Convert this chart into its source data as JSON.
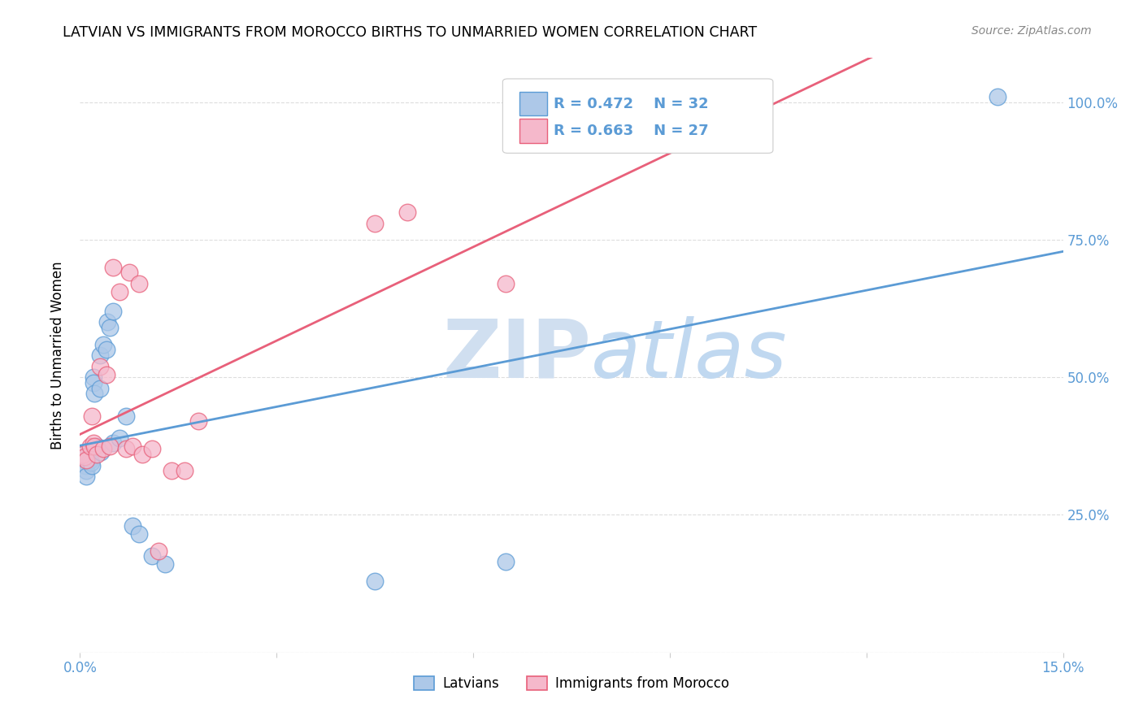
{
  "title": "LATVIAN VS IMMIGRANTS FROM MOROCCO BIRTHS TO UNMARRIED WOMEN CORRELATION CHART",
  "source": "Source: ZipAtlas.com",
  "ylabel": "Births to Unmarried Women",
  "x_min": 0.0,
  "x_max": 0.15,
  "y_min": 0.0,
  "y_max": 1.08,
  "x_ticks": [
    0.0,
    0.03,
    0.06,
    0.09,
    0.12,
    0.15
  ],
  "y_ticks": [
    0.0,
    0.25,
    0.5,
    0.75,
    1.0
  ],
  "latvians_color": "#adc8e8",
  "morocco_color": "#f5b8cb",
  "latvians_line_color": "#5b9bd5",
  "morocco_line_color": "#e8607a",
  "legend_latvians": "Latvians",
  "legend_morocco": "Immigrants from Morocco",
  "R_latvians": "R = 0.472",
  "N_latvians": "N = 32",
  "R_morocco": "R = 0.663",
  "N_morocco": "N = 27",
  "watermark_zip": "ZIP",
  "watermark_atlas": "atlas",
  "background_color": "#ffffff",
  "grid_color": "#dddddd",
  "latvians_x": [
    0.0005,
    0.0007,
    0.0008,
    0.0009,
    0.001,
    0.0012,
    0.0013,
    0.0015,
    0.0017,
    0.0018,
    0.002,
    0.002,
    0.0022,
    0.0025,
    0.003,
    0.003,
    0.0032,
    0.0035,
    0.004,
    0.0042,
    0.0045,
    0.005,
    0.005,
    0.006,
    0.007,
    0.008,
    0.009,
    0.011,
    0.013,
    0.045,
    0.065,
    0.14
  ],
  "latvians_y": [
    0.36,
    0.35,
    0.34,
    0.33,
    0.32,
    0.36,
    0.355,
    0.35,
    0.345,
    0.34,
    0.5,
    0.49,
    0.47,
    0.375,
    0.54,
    0.48,
    0.365,
    0.56,
    0.55,
    0.6,
    0.59,
    0.62,
    0.38,
    0.39,
    0.43,
    0.23,
    0.215,
    0.175,
    0.16,
    0.13,
    0.165,
    1.01
  ],
  "morocco_x": [
    0.0005,
    0.0007,
    0.001,
    0.0015,
    0.0018,
    0.002,
    0.0022,
    0.0025,
    0.003,
    0.0035,
    0.004,
    0.0045,
    0.005,
    0.006,
    0.007,
    0.0075,
    0.008,
    0.009,
    0.0095,
    0.011,
    0.012,
    0.014,
    0.016,
    0.018,
    0.045,
    0.05,
    0.065
  ],
  "morocco_y": [
    0.36,
    0.355,
    0.35,
    0.375,
    0.43,
    0.38,
    0.375,
    0.36,
    0.52,
    0.37,
    0.505,
    0.375,
    0.7,
    0.655,
    0.37,
    0.69,
    0.375,
    0.67,
    0.36,
    0.37,
    0.185,
    0.33,
    0.33,
    0.42,
    0.78,
    0.8,
    0.67
  ]
}
